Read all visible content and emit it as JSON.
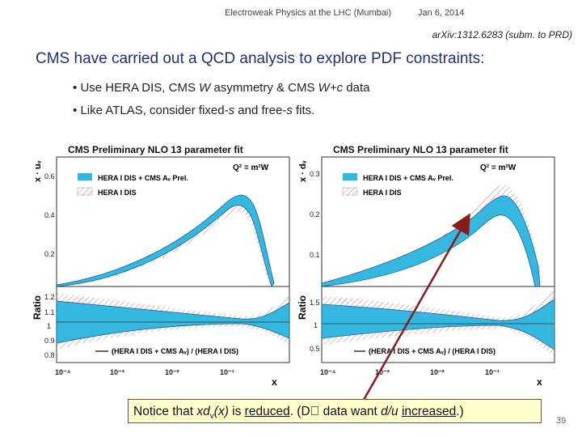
{
  "header": {
    "title": "Electroweak Physics at the LHC (Mumbai)",
    "date": "Jan 6, 2014"
  },
  "reference": "arXiv:1312.6283 (subm. to PRD)",
  "slide": {
    "title": "CMS have carried out a QCD analysis to explore PDF constraints:",
    "bullets": [
      {
        "marker": "•",
        "parts": [
          "Use HERA DIS, CMS ",
          "W",
          " asymmetry & CMS ",
          "W+c",
          " data"
        ]
      },
      {
        "marker": "•",
        "parts": [
          "Like ATLAS, consider fixed-",
          "s",
          " and free-",
          "s",
          " fits."
        ]
      }
    ]
  },
  "plots": [
    {
      "title": "CMS Preliminary NLO 13 parameter fit",
      "scale": "Q² = m²W",
      "ylabel_top": "x · uᵥ",
      "ylabel_bottom": "Ratio",
      "xlabel": "x",
      "legend": [
        "HERA I DIS + CMS Aᵥ Prel.",
        "HERA I DIS"
      ],
      "ratio_label": "(HERA I DIS + CMS Aᵥ) / (HERA I DIS)",
      "yticks_top": [
        "0.6",
        "0.4",
        "0.2"
      ],
      "yticks_bottom": [
        "1.2",
        "1.1",
        "1",
        "0.9",
        "0.8"
      ],
      "xticks": [
        "10⁻⁴",
        "10⁻³",
        "10⁻²",
        "10⁻¹"
      ],
      "colors": {
        "band": "#35b8e0",
        "hatch": "#b08090"
      }
    },
    {
      "title": "CMS Preliminary NLO 13 parameter fit",
      "scale": "Q² = m²W",
      "ylabel_top": "x · dᵥ",
      "ylabel_bottom": "Ratio",
      "xlabel": "x",
      "legend": [
        "HERA I DIS + CMS Aᵥ Prel.",
        "HERA I DIS"
      ],
      "ratio_label": "(HERA I DIS + CMS Aᵥ) / (HERA I DIS)",
      "yticks_top": [
        "0.3",
        "0.2",
        "0.1"
      ],
      "yticks_bottom": [
        "1.5",
        "1",
        "0.5"
      ],
      "xticks": [
        "10⁻⁴",
        "10⁻³",
        "10⁻²",
        "10⁻¹"
      ],
      "colors": {
        "band": "#35b8e0",
        "hatch": "#b08090"
      }
    }
  ],
  "notice": {
    "parts": [
      "Notice that ",
      "xd",
      "v",
      "(x)",
      " is ",
      "reduced",
      ".  (D",
      "⃠",
      " data want ",
      "d/u",
      " ",
      "increased",
      ".)"
    ]
  },
  "page_number": "39",
  "arrow_color": "#8b1a1a"
}
